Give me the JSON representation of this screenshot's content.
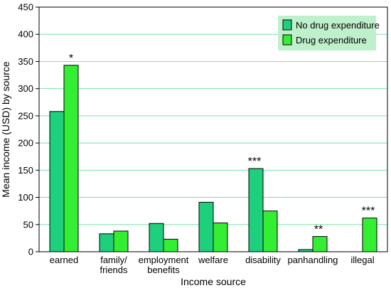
{
  "chart_data": {
    "type": "bar",
    "xlabel": "Income source",
    "ylabel": "Mean income (USD) by source",
    "ylim": [
      0,
      450
    ],
    "yticks": [
      0,
      50,
      100,
      150,
      200,
      250,
      300,
      350,
      400,
      450
    ],
    "grid": true,
    "legend_position": "top-right",
    "categories": [
      [
        "earned"
      ],
      [
        "family/",
        "friends"
      ],
      [
        "employment",
        "benefits"
      ],
      [
        "welfare"
      ],
      [
        "disability"
      ],
      [
        "panhandling"
      ],
      [
        "illegal"
      ]
    ],
    "series": [
      {
        "name": "No drug expenditure",
        "color": "#1ecf7b",
        "values": [
          258,
          33,
          52,
          91,
          153,
          4,
          0
        ]
      },
      {
        "name": "Drug expenditure",
        "color": "#33ee33",
        "values": [
          343,
          38,
          23,
          53,
          75,
          28,
          62
        ]
      }
    ],
    "annotations": [
      {
        "category": 0,
        "series": 1,
        "text": "*"
      },
      {
        "category": 4,
        "series": 0,
        "text": "***"
      },
      {
        "category": 5,
        "series": 1,
        "text": "**"
      },
      {
        "category": 6,
        "series": 1,
        "text": "***"
      }
    ],
    "colors": {
      "grid": "#7fe0a8",
      "legend_bg": "#bff0cc"
    }
  }
}
